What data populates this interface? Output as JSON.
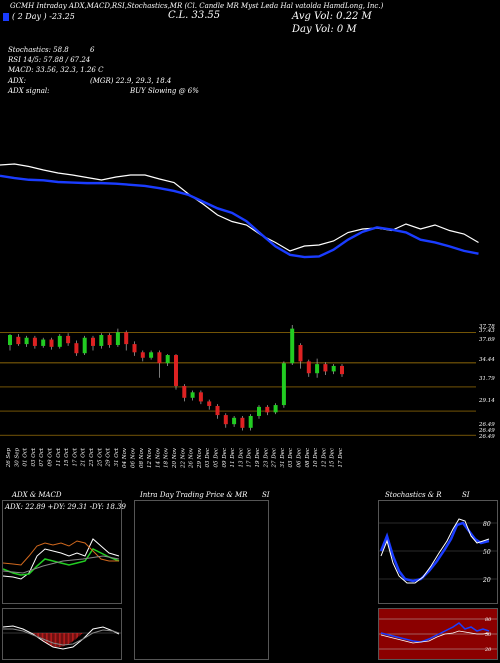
{
  "header": {
    "title_line": "GCMH Intraday ADX,MACD,RSI,Stochastics,MR     (Cl. Candle MR     Myst                       Leda Hal             vatolda HamdLong, Inc.)",
    "cl_label": "C.L. 33.55",
    "day_label": "( 2 Day ) -23.25",
    "avg_vol": "Avg Vol: 0.22 M",
    "day_vol": "Day Vol: 0   M",
    "stoch": "Stochastics: 58.8",
    "stoch_val": "6",
    "rsi": "RSI 14/5: 57.88 / 67.24",
    "macd": "MACD: 33.56, 32.3, 1.26   C",
    "adx": "ADX:",
    "adx_vals": "(MGR) 22.9, 29.3, 18.4",
    "adx_signal": "ADX signal:",
    "signal": "BUY Slowing @ 6%",
    "accent": "#1a3cff"
  },
  "price_levels": [
    "37.78",
    "37.43",
    "37.69",
    "34.44",
    "31.79",
    "29.14",
    "26.49",
    "26.49",
    "26.49"
  ],
  "dates": [
    "26 Sep",
    "30 Sep",
    "01 Oct",
    "03 Oct",
    "07 Oct",
    "09 Oct",
    "11 Oct",
    "15 Oct",
    "17 Oct",
    "21 Oct",
    "23 Oct",
    "25 Oct",
    "29 Oct",
    "31 Oct",
    "04 Nov",
    "06 Nov",
    "08 Nov",
    "12 Nov",
    "14 Nov",
    "18 Nov",
    "20 Nov",
    "22 Nov",
    "26 Nov",
    "29 Nov",
    "03 Dec",
    "05 Dec",
    "09 Dec",
    "11 Dec",
    "13 Dec",
    "17 Dec",
    "19 Dec",
    "23 Dec",
    "27 Dec",
    "31 Dec",
    "03 Dec",
    "06 Dec",
    "08 Dec",
    "10 Dec",
    "12 Dec",
    "15 Dec",
    "17 Dec"
  ],
  "panels": {
    "adx_title": "ADX & MACD",
    "adx_vals": "ADX: 22.89  +DY: 29.31  -DY: 18.39",
    "mr_title": "Intra Day Trading Price & MR",
    "mr_si": "SI",
    "stoch_title": "Stochastics & R",
    "stoch_si": "SI",
    "stoch_levels": [
      "80",
      "50",
      "20"
    ],
    "rsi_levels": [
      "80",
      "50",
      "20"
    ]
  },
  "colors": {
    "up": "#22cc22",
    "down": "#dd2222",
    "ma": "#1a3cff",
    "price": "#ffffff",
    "rsi_bg": "#8b0000",
    "level": "#b8860b"
  },
  "chart_data": {
    "type": "candlestick",
    "candles": [
      [
        36.4,
        37.5,
        35.8,
        37.6
      ],
      [
        37.3,
        36.5,
        36.3,
        37.6
      ],
      [
        36.5,
        37.2,
        36.2,
        37.4
      ],
      [
        37.2,
        36.3,
        36.0,
        37.4
      ],
      [
        36.3,
        37.0,
        36.1,
        37.2
      ],
      [
        37.0,
        36.2,
        35.9,
        37.2
      ],
      [
        36.2,
        37.4,
        36.0,
        37.6
      ],
      [
        37.4,
        36.6,
        36.3,
        37.7
      ],
      [
        36.6,
        35.5,
        35.2,
        36.9
      ],
      [
        35.5,
        37.2,
        35.3,
        37.4
      ],
      [
        37.2,
        36.3,
        35.8,
        37.4
      ],
      [
        36.3,
        37.5,
        36.0,
        37.7
      ],
      [
        37.5,
        36.4,
        36.1,
        37.7
      ],
      [
        36.4,
        37.8,
        36.2,
        38.2
      ],
      [
        37.8,
        36.5,
        35.8,
        38.0
      ],
      [
        36.5,
        35.6,
        35.2,
        36.8
      ],
      [
        35.6,
        35.0,
        34.6,
        35.8
      ],
      [
        35.0,
        35.6,
        34.8,
        35.8
      ],
      [
        35.6,
        34.4,
        32.8,
        35.8
      ],
      [
        34.4,
        35.3,
        34.1,
        35.4
      ],
      [
        35.3,
        31.9,
        31.5,
        35.4
      ],
      [
        31.9,
        30.6,
        30.2,
        32.1
      ],
      [
        30.6,
        31.2,
        30.3,
        31.4
      ],
      [
        31.2,
        30.2,
        29.9,
        31.4
      ],
      [
        30.2,
        29.7,
        29.3,
        30.4
      ],
      [
        29.7,
        28.7,
        28.3,
        29.9
      ],
      [
        28.7,
        27.7,
        27.3,
        28.9
      ],
      [
        27.7,
        28.4,
        27.4,
        28.6
      ],
      [
        28.4,
        27.3,
        27.0,
        28.6
      ],
      [
        27.3,
        28.6,
        27.0,
        28.8
      ],
      [
        28.6,
        29.6,
        28.3,
        29.8
      ],
      [
        29.6,
        29.0,
        28.7,
        29.8
      ],
      [
        29.0,
        29.8,
        28.8,
        30.0
      ],
      [
        29.8,
        34.4,
        29.5,
        34.6
      ],
      [
        34.4,
        38.2,
        34.2,
        38.6
      ],
      [
        36.4,
        34.6,
        33.8,
        36.6
      ],
      [
        34.6,
        33.3,
        32.9,
        34.8
      ],
      [
        33.3,
        34.3,
        32.8,
        34.9
      ],
      [
        34.3,
        33.5,
        33.1,
        34.5
      ],
      [
        33.5,
        34.1,
        33.2,
        34.3
      ],
      [
        34.1,
        33.2,
        32.9,
        34.3
      ]
    ],
    "ma_line": [
      64,
      68,
      71,
      72,
      75,
      76,
      77,
      77,
      78,
      80,
      82,
      86,
      91,
      98,
      110,
      122,
      130,
      145,
      168,
      190,
      205,
      209,
      208,
      196,
      178,
      164,
      156,
      160,
      165,
      178,
      183,
      190,
      198,
      203
    ],
    "price_line": [
      50,
      48,
      53,
      60,
      66,
      70,
      75,
      80,
      74,
      70,
      70,
      78,
      85,
      108,
      128,
      150,
      163,
      170,
      190,
      205,
      222,
      212,
      210,
      202,
      185,
      178,
      176,
      181,
      168,
      178,
      170,
      181,
      188,
      205
    ]
  }
}
